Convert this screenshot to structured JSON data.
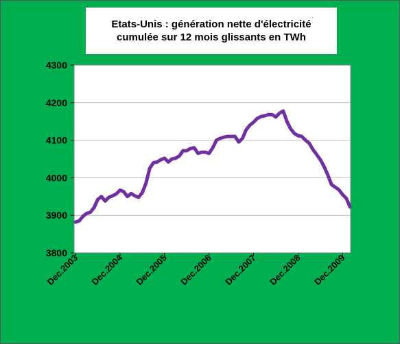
{
  "title": {
    "line1": "Etats-Unis : génération nette d'électricité",
    "line2": "cumulée sur 12 mois glissants en TWh"
  },
  "colors": {
    "background": "#00B050",
    "plot_area": "#ffffff",
    "series": "#7030A0",
    "grid": "#c0c0c0"
  },
  "chart_data": {
    "type": "line",
    "title": "Etats-Unis : génération nette d'électricité cumulée sur 12 mois glissants en TWh",
    "xlabel": "",
    "ylabel": "",
    "ylim": [
      3800,
      4300
    ],
    "y_ticks": [
      3800,
      3900,
      4000,
      4100,
      4200,
      4300
    ],
    "grid": true,
    "legend": "none",
    "x_ticks": [
      "Dec.2003",
      "Dec.2004",
      "Dec.2005",
      "Dec.2006",
      "Dec.2007",
      "Dec.2008",
      "Dec.2009"
    ],
    "series": [
      {
        "values": [
          3882,
          3885,
          3897,
          3905,
          3908,
          3920,
          3942,
          3950,
          3938,
          3948,
          3952,
          3957,
          3967,
          3963,
          3950,
          3958,
          3952,
          3948,
          3960,
          3985,
          4025,
          4040,
          4042,
          4048,
          4052,
          4042,
          4050,
          4052,
          4058,
          4072,
          4072,
          4078,
          4080,
          4065,
          4068,
          4068,
          4065,
          4080,
          4100,
          4105,
          4108,
          4110,
          4110,
          4110,
          4095,
          4105,
          4128,
          4140,
          4148,
          4158,
          4163,
          4165,
          4168,
          4168,
          4162,
          4172,
          4178,
          4150,
          4130,
          4118,
          4112,
          4110,
          4100,
          4092,
          4075,
          4062,
          4048,
          4030,
          4008,
          3982,
          3975,
          3968,
          3955,
          3945,
          3922
        ]
      }
    ]
  }
}
